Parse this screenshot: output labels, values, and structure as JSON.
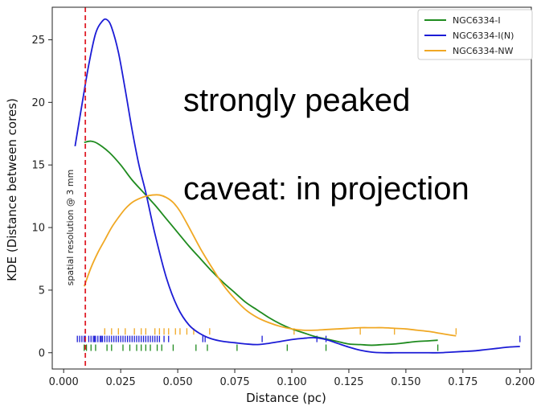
{
  "chart_data": {
    "type": "line",
    "xlabel": "Distance (pc)",
    "ylabel": "KDE (Distance between cores)",
    "xlim": [
      -0.005,
      0.205
    ],
    "ylim": [
      -1.3,
      27.6
    ],
    "xticks": [
      0.0,
      0.025,
      0.05,
      0.075,
      0.1,
      0.125,
      0.15,
      0.175,
      0.2
    ],
    "xtick_labels": [
      "0.000",
      "0.025",
      "0.050",
      "0.075",
      "0.100",
      "0.125",
      "0.150",
      "0.175",
      "0.200"
    ],
    "yticks": [
      0,
      5,
      10,
      15,
      20,
      25
    ],
    "ytick_labels": [
      "0",
      "5",
      "10",
      "15",
      "20",
      "25"
    ],
    "legend_position": "top-right",
    "grid": false,
    "series": [
      {
        "name": "NGC6334-I",
        "color": "#1f8b1f",
        "x": [
          0.009,
          0.012,
          0.015,
          0.02,
          0.025,
          0.03,
          0.035,
          0.04,
          0.045,
          0.05,
          0.055,
          0.06,
          0.065,
          0.07,
          0.075,
          0.08,
          0.085,
          0.09,
          0.095,
          0.1,
          0.105,
          0.11,
          0.115,
          0.12,
          0.125,
          0.13,
          0.135,
          0.14,
          0.145,
          0.15,
          0.155,
          0.16,
          0.164
        ],
        "y": [
          16.8,
          16.9,
          16.7,
          16.0,
          15.0,
          13.8,
          12.8,
          11.8,
          10.7,
          9.6,
          8.5,
          7.5,
          6.5,
          5.6,
          4.8,
          4.0,
          3.4,
          2.8,
          2.3,
          1.9,
          1.6,
          1.3,
          1.1,
          0.9,
          0.7,
          0.65,
          0.6,
          0.65,
          0.7,
          0.8,
          0.9,
          0.95,
          1.0
        ]
      },
      {
        "name": "NGC6334-I(N)",
        "color": "#1c1cd6",
        "x": [
          0.005,
          0.008,
          0.011,
          0.014,
          0.017,
          0.019,
          0.021,
          0.024,
          0.027,
          0.03,
          0.033,
          0.036,
          0.04,
          0.045,
          0.05,
          0.055,
          0.06,
          0.065,
          0.07,
          0.075,
          0.08,
          0.085,
          0.09,
          0.095,
          0.1,
          0.105,
          0.11,
          0.115,
          0.12,
          0.125,
          0.13,
          0.135,
          0.14,
          0.145,
          0.15,
          0.155,
          0.16,
          0.165,
          0.17,
          0.175,
          0.18,
          0.185,
          0.19,
          0.195,
          0.2
        ],
        "y": [
          16.5,
          19.8,
          23.0,
          25.5,
          26.5,
          26.6,
          26.0,
          24.0,
          21.0,
          17.8,
          15.0,
          12.8,
          9.5,
          6.0,
          3.6,
          2.2,
          1.5,
          1.1,
          0.9,
          0.8,
          0.7,
          0.65,
          0.75,
          0.9,
          1.05,
          1.15,
          1.2,
          1.05,
          0.75,
          0.45,
          0.2,
          0.05,
          0.0,
          0.0,
          0.0,
          0.0,
          0.0,
          0.0,
          0.05,
          0.1,
          0.15,
          0.25,
          0.35,
          0.45,
          0.5
        ]
      },
      {
        "name": "NGC6334-NW",
        "color": "#f0a824",
        "x": [
          0.009,
          0.012,
          0.015,
          0.018,
          0.021,
          0.024,
          0.027,
          0.03,
          0.033,
          0.036,
          0.039,
          0.042,
          0.045,
          0.048,
          0.051,
          0.055,
          0.06,
          0.065,
          0.07,
          0.075,
          0.08,
          0.085,
          0.09,
          0.095,
          0.1,
          0.105,
          0.11,
          0.115,
          0.12,
          0.125,
          0.13,
          0.135,
          0.14,
          0.145,
          0.15,
          0.155,
          0.16,
          0.165,
          0.17,
          0.172
        ],
        "y": [
          5.3,
          6.8,
          8.0,
          9.0,
          10.0,
          10.8,
          11.5,
          12.0,
          12.3,
          12.5,
          12.6,
          12.6,
          12.4,
          12.0,
          11.3,
          10.0,
          8.3,
          6.8,
          5.4,
          4.3,
          3.4,
          2.8,
          2.4,
          2.1,
          1.9,
          1.8,
          1.8,
          1.85,
          1.9,
          1.95,
          2.0,
          2.0,
          2.0,
          1.95,
          1.9,
          1.8,
          1.7,
          1.55,
          1.4,
          1.35
        ]
      }
    ],
    "rugs": [
      {
        "series": "NGC6334-I(N)",
        "y_level": 1.1,
        "x": [
          0.006,
          0.007,
          0.008,
          0.009,
          0.0095,
          0.011,
          0.012,
          0.013,
          0.0135,
          0.014,
          0.015,
          0.016,
          0.0165,
          0.017,
          0.018,
          0.019,
          0.02,
          0.021,
          0.022,
          0.023,
          0.024,
          0.025,
          0.026,
          0.027,
          0.028,
          0.029,
          0.03,
          0.031,
          0.032,
          0.033,
          0.034,
          0.035,
          0.036,
          0.037,
          0.038,
          0.039,
          0.04,
          0.041,
          0.042,
          0.044,
          0.046,
          0.061,
          0.062,
          0.087,
          0.111,
          0.115,
          0.2
        ]
      },
      {
        "series": "NGC6334-NW",
        "y_level": 1.7,
        "x": [
          0.018,
          0.021,
          0.024,
          0.027,
          0.031,
          0.034,
          0.036,
          0.04,
          0.042,
          0.044,
          0.046,
          0.049,
          0.051,
          0.054,
          0.057,
          0.064,
          0.101,
          0.13,
          0.145,
          0.172
        ]
      },
      {
        "series": "NGC6334-I",
        "y_level": 0.4,
        "x": [
          0.009,
          0.01,
          0.012,
          0.014,
          0.019,
          0.021,
          0.026,
          0.029,
          0.032,
          0.034,
          0.036,
          0.038,
          0.041,
          0.043,
          0.048,
          0.058,
          0.063,
          0.076,
          0.098,
          0.115,
          0.164
        ]
      }
    ],
    "vline": {
      "x": 0.0095,
      "color": "#e0202a",
      "style": "dashed",
      "label": "spatial resolution @ 3 mm"
    },
    "annotations": [
      "strongly peaked",
      "caveat: in projection"
    ]
  }
}
